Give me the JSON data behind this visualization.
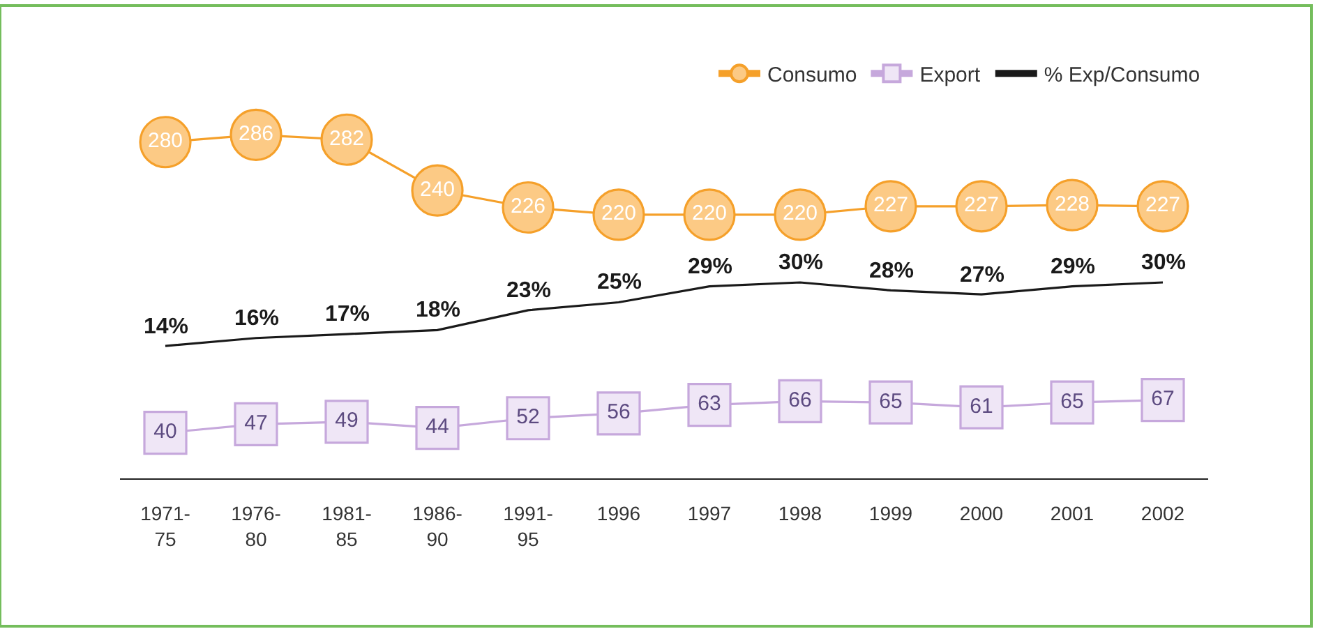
{
  "chart_data": {
    "type": "line",
    "categories": [
      "1971-\n75",
      "1976-\n80",
      "1981-\n85",
      "1986-\n90",
      "1991-\n95",
      "1996",
      "1997",
      "1998",
      "1999",
      "2000",
      "2001",
      "2002"
    ],
    "series": [
      {
        "name": "Consumo",
        "color": "#f5a02a",
        "marker": "circle",
        "axis": "y",
        "values": [
          280,
          286,
          282,
          240,
          226,
          220,
          220,
          220,
          227,
          227,
          228,
          227
        ]
      },
      {
        "name": "Export",
        "color": "#c6a8dc",
        "marker": "square",
        "axis": "y",
        "values": [
          40,
          47,
          49,
          44,
          52,
          56,
          63,
          66,
          65,
          61,
          65,
          67
        ]
      },
      {
        "name": "% Exp/Consumo",
        "color": "#1a1a1a",
        "marker": "none",
        "axis": "y2",
        "values": [
          14,
          16,
          17,
          18,
          23,
          25,
          29,
          30,
          28,
          27,
          29,
          30
        ],
        "value_labels": [
          "14%",
          "16%",
          "17%",
          "18%",
          "23%",
          "25%",
          "29%",
          "30%",
          "28%",
          "27%",
          "29%",
          "30%"
        ]
      }
    ],
    "data_labels": true,
    "legend": "top right",
    "tick_labels": "x"
  }
}
